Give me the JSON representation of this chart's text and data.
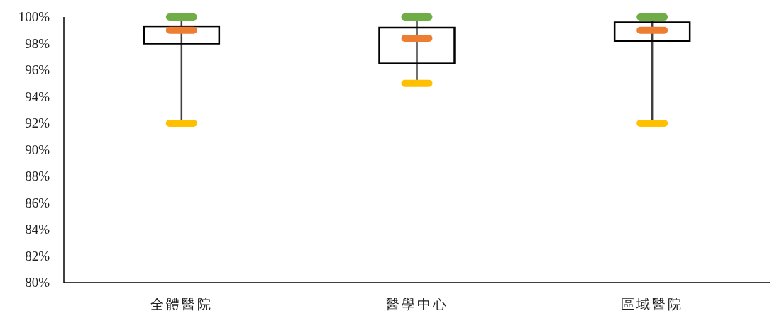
{
  "chart_data": {
    "type": "box",
    "categories": [
      "全體醫院",
      "醫學中心",
      "區域醫院"
    ],
    "boxes": [
      {
        "low": 92,
        "q1": 98,
        "median": 99,
        "q3": 99.3,
        "high": 100
      },
      {
        "low": 95,
        "q1": 96.5,
        "median": 98.4,
        "q3": 99.2,
        "high": 100
      },
      {
        "low": 92,
        "q1": 98.2,
        "median": 99,
        "q3": 99.6,
        "high": 100
      }
    ],
    "ylim": [
      80,
      100
    ],
    "yticks": [
      {
        "value": 80,
        "label": "80%"
      },
      {
        "value": 82,
        "label": "82%"
      },
      {
        "value": 84,
        "label": "84%"
      },
      {
        "value": 86,
        "label": "86%"
      },
      {
        "value": 88,
        "label": "88%"
      },
      {
        "value": 90,
        "label": "90%"
      },
      {
        "value": 92,
        "label": "92%"
      },
      {
        "value": 94,
        "label": "94%"
      },
      {
        "value": 96,
        "label": "96%"
      },
      {
        "value": 98,
        "label": "98%"
      },
      {
        "value": 100,
        "label": "100%"
      }
    ]
  }
}
